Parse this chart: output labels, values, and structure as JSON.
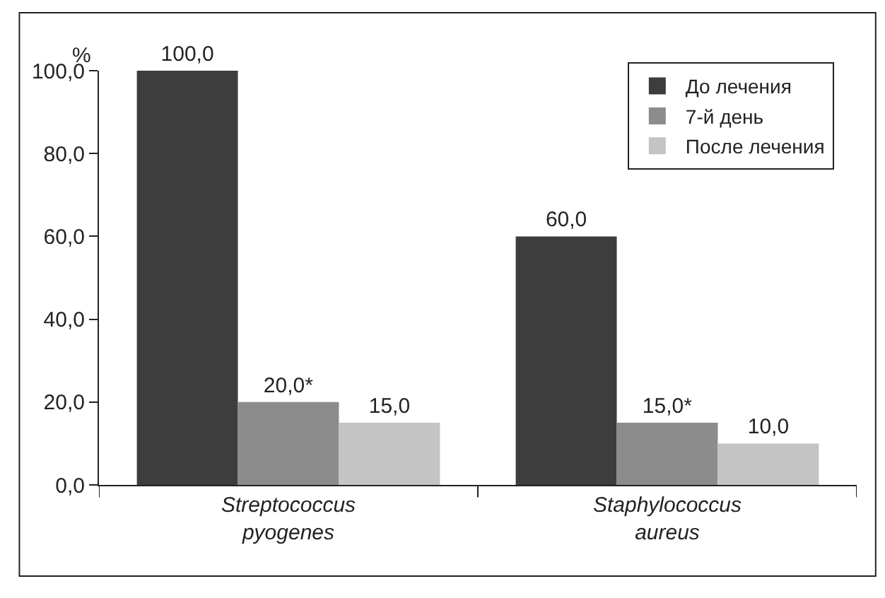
{
  "chart_data": {
    "type": "bar",
    "ylabel": "%",
    "categories": [
      "Streptococcus pyogenes",
      "Staphylococcus aureus"
    ],
    "series": [
      {
        "name": "До лечения",
        "color": "#3d3d3d",
        "values": [
          100.0,
          60.0
        ],
        "value_labels": [
          "100,0",
          "60,0"
        ]
      },
      {
        "name": "7-й день",
        "color": "#8c8c8c",
        "values": [
          20.0,
          15.0
        ],
        "value_labels": [
          "20,0*",
          "15,0*"
        ]
      },
      {
        "name": "После лечения",
        "color": "#c4c4c4",
        "values": [
          15.0,
          10.0
        ],
        "value_labels": [
          "15,0",
          "10,0"
        ]
      }
    ],
    "ylim": [
      0,
      100
    ],
    "yticks": [
      {
        "value": 0,
        "label": "0,0"
      },
      {
        "value": 20,
        "label": "20,0"
      },
      {
        "value": 40,
        "label": "40,0"
      },
      {
        "value": 60,
        "label": "60,0"
      },
      {
        "value": 80,
        "label": "80,0"
      },
      {
        "value": 100,
        "label": "100,0"
      }
    ],
    "legend": "top right"
  }
}
